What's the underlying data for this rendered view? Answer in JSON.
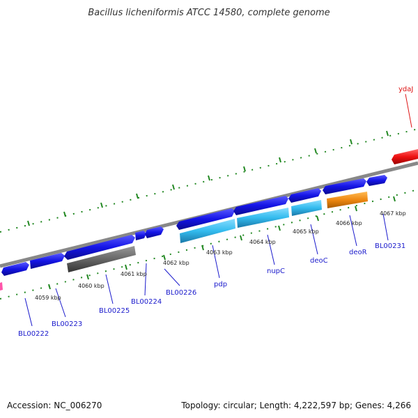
{
  "title": "Bacillus licheniformis ATCC 14580, complete genome",
  "footer": {
    "accession": "Accession: NC_006270",
    "topology": "Topology: circular; Length: 4,222,597 bp; Genes: 4,266"
  },
  "colors": {
    "background": "#ffffff",
    "backbone": "#888888",
    "tick": "#228822",
    "gene_default": "#1414e6",
    "gene_light": "#33bbee",
    "gene_gray": "#666666",
    "gene_orange": "#ee8811",
    "gene_red": "#ee1111",
    "gene_label": "#1a1acc",
    "gene_label_red": "#dd1111"
  },
  "kbp_labels": [
    "4059 kbp",
    "4060 kbp",
    "4061 kbp",
    "4062 kbp",
    "4063 kbp",
    "4064 kbp",
    "4065 kbp",
    "4066 kbp",
    "4067 kbp"
  ],
  "gene_labels": [
    "BL00222",
    "BL00223",
    "BL00225",
    "BL00224",
    "BL00226",
    "pdp",
    "nupC",
    "deoC",
    "deoR",
    "BL00231",
    "ydaJ"
  ]
}
